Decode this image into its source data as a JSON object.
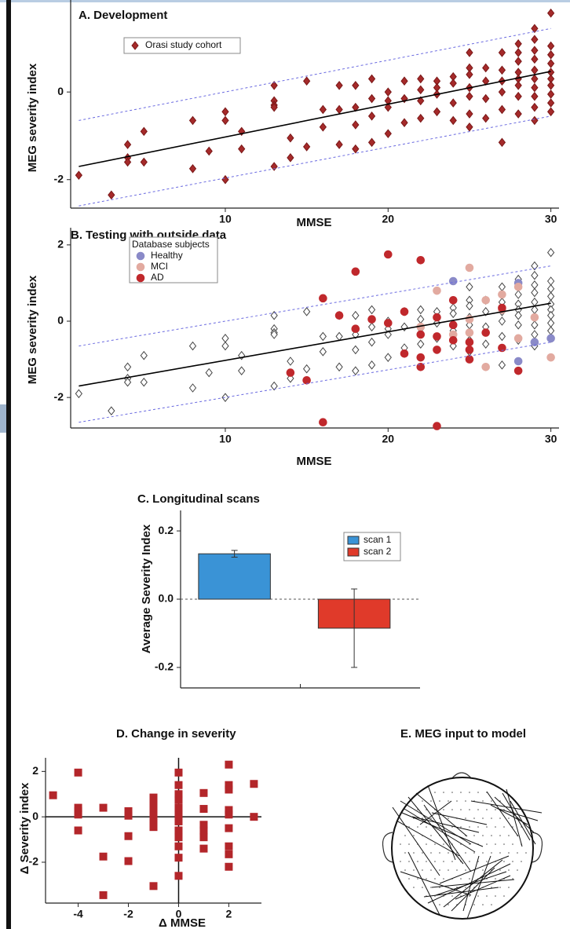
{
  "chart_data": [
    {
      "type": "scatter",
      "title": "A. Development",
      "x_label": "MMSE",
      "y_label": "MEG severity index",
      "xlim": [
        0.5,
        30.5
      ],
      "ylim": [
        -2.65,
        2.1
      ],
      "xticks": [
        10,
        20,
        30
      ],
      "yticks": [
        -2,
        0
      ],
      "legend": "upper left",
      "lines": [
        {
          "x": [
            1,
            30
          ],
          "values": [
            -1.7,
            0.47
          ],
          "color": "#000000",
          "dashed": false
        },
        {
          "x": [
            1,
            30
          ],
          "values": [
            -0.65,
            1.45
          ],
          "color": "#6a6ae0",
          "dashed": true
        },
        {
          "x": [
            1,
            30
          ],
          "values": [
            -2.6,
            -0.55
          ],
          "color": "#6a6ae0",
          "dashed": true
        }
      ],
      "series": [
        {
          "name": "Orasi study cohort",
          "marker": "diamond",
          "color": "#a52a2a",
          "edgecolor": "#7a1818",
          "x": [
            1,
            3,
            4,
            4,
            4,
            5,
            5,
            8,
            8,
            9,
            10,
            10,
            10,
            11,
            11,
            13,
            13,
            13,
            13,
            13,
            14,
            14,
            15,
            15,
            16,
            16,
            17,
            17,
            17,
            18,
            18,
            18,
            18,
            19,
            19,
            19,
            19,
            20,
            20,
            20,
            20,
            21,
            21,
            21,
            22,
            22,
            22,
            22,
            23,
            23,
            23,
            23,
            24,
            24,
            24,
            24,
            25,
            25,
            25,
            25,
            25,
            25,
            25,
            26,
            26,
            26,
            26,
            27,
            27,
            27,
            27,
            27,
            27,
            28,
            28,
            28,
            28,
            28,
            28,
            28,
            28,
            29,
            29,
            29,
            29,
            29,
            29,
            29,
            29,
            29,
            29,
            30,
            30,
            30,
            30,
            30,
            30,
            30,
            30,
            30,
            30
          ],
          "values": [
            -1.9,
            -2.35,
            -1.2,
            -1.5,
            -1.6,
            -0.9,
            -1.6,
            -0.65,
            -1.75,
            -1.35,
            -0.45,
            -0.65,
            -2.0,
            -0.9,
            -1.3,
            0.15,
            -0.2,
            -0.3,
            -0.35,
            -1.7,
            -1.05,
            -1.5,
            0.25,
            -1.25,
            -0.4,
            -0.8,
            0.15,
            -0.4,
            -1.2,
            0.15,
            -0.35,
            -0.75,
            -1.3,
            0.3,
            -0.15,
            -0.55,
            -1.15,
            0.0,
            -0.2,
            -0.35,
            -0.95,
            0.25,
            -0.15,
            -0.7,
            0.3,
            0.05,
            -0.2,
            -0.6,
            0.25,
            0.1,
            -0.05,
            -0.45,
            0.35,
            0.2,
            -0.25,
            -0.65,
            0.9,
            0.55,
            0.4,
            0.1,
            -0.1,
            -0.5,
            -0.8,
            0.55,
            0.25,
            -0.15,
            -0.6,
            0.9,
            0.5,
            0.25,
            0.0,
            -0.4,
            -1.15,
            1.1,
            0.9,
            0.7,
            0.45,
            0.3,
            0.15,
            -0.1,
            -0.5,
            1.45,
            1.2,
            0.95,
            0.75,
            0.5,
            0.3,
            0.1,
            -0.1,
            -0.35,
            -0.65,
            1.8,
            1.05,
            0.85,
            0.65,
            0.45,
            0.3,
            0.15,
            -0.05,
            -0.25,
            -0.45
          ]
        }
      ]
    },
    {
      "type": "scatter",
      "title": "B. Testing with outside data",
      "x_label": "MMSE",
      "y_label": "MEG severity index",
      "xlim": [
        0.5,
        30.5
      ],
      "ylim": [
        -2.8,
        2.45
      ],
      "xticks": [
        10,
        20,
        30
      ],
      "yticks": [
        -2,
        0,
        2
      ],
      "legend": "upper left",
      "legend_title": "Database subjects",
      "lines": [
        {
          "x": [
            1,
            30
          ],
          "values": [
            -1.7,
            0.47
          ],
          "color": "#000000",
          "dashed": false
        },
        {
          "x": [
            1,
            30
          ],
          "values": [
            -0.65,
            1.45
          ],
          "color": "#6a6ae0",
          "dashed": true
        },
        {
          "x": [
            1,
            30
          ],
          "values": [
            -2.65,
            -0.55
          ],
          "color": "#6a6ae0",
          "dashed": true
        }
      ],
      "series": [
        {
          "marker": "diamond",
          "color": "#ffffff",
          "edgecolor": "#444444",
          "x": [
            1,
            3,
            4,
            4,
            4,
            5,
            5,
            8,
            8,
            9,
            10,
            10,
            10,
            11,
            11,
            13,
            13,
            13,
            13,
            13,
            14,
            14,
            15,
            15,
            16,
            16,
            17,
            17,
            17,
            18,
            18,
            18,
            18,
            19,
            19,
            19,
            19,
            20,
            20,
            20,
            20,
            21,
            21,
            21,
            22,
            22,
            22,
            22,
            23,
            23,
            23,
            23,
            24,
            24,
            24,
            24,
            25,
            25,
            25,
            25,
            25,
            25,
            25,
            26,
            26,
            26,
            26,
            27,
            27,
            27,
            27,
            27,
            27,
            28,
            28,
            28,
            28,
            28,
            28,
            28,
            28,
            29,
            29,
            29,
            29,
            29,
            29,
            29,
            29,
            29,
            29,
            30,
            30,
            30,
            30,
            30,
            30,
            30,
            30,
            30,
            30
          ],
          "values": [
            -1.9,
            -2.35,
            -1.2,
            -1.5,
            -1.6,
            -0.9,
            -1.6,
            -0.65,
            -1.75,
            -1.35,
            -0.45,
            -0.65,
            -2.0,
            -0.9,
            -1.3,
            0.15,
            -0.2,
            -0.3,
            -0.35,
            -1.7,
            -1.05,
            -1.5,
            0.25,
            -1.25,
            -0.4,
            -0.8,
            0.15,
            -0.4,
            -1.2,
            0.15,
            -0.35,
            -0.75,
            -1.3,
            0.3,
            -0.15,
            -0.55,
            -1.15,
            0.0,
            -0.2,
            -0.35,
            -0.95,
            0.25,
            -0.15,
            -0.7,
            0.3,
            0.05,
            -0.2,
            -0.6,
            0.25,
            0.1,
            -0.05,
            -0.45,
            0.35,
            0.2,
            -0.25,
            -0.65,
            0.9,
            0.55,
            0.4,
            0.1,
            -0.1,
            -0.5,
            -0.8,
            0.55,
            0.25,
            -0.15,
            -0.6,
            0.9,
            0.5,
            0.25,
            0.0,
            -0.4,
            -1.15,
            1.1,
            0.9,
            0.7,
            0.45,
            0.3,
            0.15,
            -0.1,
            -0.5,
            1.45,
            1.2,
            0.95,
            0.75,
            0.5,
            0.3,
            0.1,
            -0.1,
            -0.35,
            -0.65,
            1.8,
            1.05,
            0.85,
            0.65,
            0.45,
            0.3,
            0.15,
            -0.05,
            -0.25,
            -0.45
          ]
        },
        {
          "name": "Healthy",
          "marker": "circle",
          "color": "#8a8ac8",
          "edgecolor": "#8a8ac8",
          "x": [
            24,
            28,
            28,
            29,
            30
          ],
          "values": [
            1.05,
            1.0,
            -1.05,
            -0.55,
            -0.45
          ]
        },
        {
          "name": "MCI",
          "marker": "circle",
          "color": "#e2aaa0",
          "edgecolor": "#e2aaa0",
          "x": [
            22,
            23,
            24,
            25,
            25,
            25,
            26,
            26,
            27,
            27,
            28,
            28,
            29,
            30
          ],
          "values": [
            -0.15,
            0.8,
            -0.35,
            1.4,
            0.05,
            -0.3,
            0.55,
            -1.2,
            0.3,
            0.7,
            0.9,
            -0.45,
            0.1,
            -0.95
          ]
        },
        {
          "name": "AD",
          "marker": "circle",
          "color": "#c0282c",
          "edgecolor": "#c0282c",
          "x": [
            14,
            15,
            16,
            16,
            17,
            18,
            18,
            19,
            20,
            20,
            21,
            21,
            22,
            22,
            22,
            22,
            23,
            23,
            23,
            23,
            24,
            24,
            24,
            25,
            25,
            25,
            26,
            27,
            27,
            28
          ],
          "values": [
            -1.35,
            -1.55,
            0.6,
            -2.65,
            0.15,
            1.3,
            -0.2,
            0.05,
            1.75,
            -0.05,
            0.25,
            -0.85,
            1.6,
            -0.35,
            -0.95,
            -1.2,
            0.1,
            -0.4,
            -0.75,
            -2.75,
            0.55,
            -0.1,
            -0.5,
            -0.55,
            -0.75,
            -1.0,
            -0.3,
            0.35,
            -0.7,
            -1.3
          ]
        }
      ]
    },
    {
      "type": "bar",
      "title": "C. Longitudinal scans",
      "y_label": "Average Severity Index",
      "categories": [
        "scan 1",
        "scan 2"
      ],
      "values": [
        0.133,
        -0.085
      ],
      "errors": [
        0.01,
        0.115
      ],
      "colors": [
        "#3a93d6",
        "#e03a2a"
      ],
      "ylim": [
        -0.26,
        0.26
      ],
      "yticks": [
        {
          "value": -0.2,
          "label": "-0.2"
        },
        {
          "value": 0,
          "label": "0.0"
        },
        {
          "value": 0.2,
          "label": "0.2"
        }
      ],
      "legend": "upper right",
      "zero_line": true
    },
    {
      "type": "scatter",
      "title": "D. Change in severity",
      "x_label": "Δ MMSE",
      "y_label": "Δ Severity index",
      "xlim": [
        -5.3,
        3.3
      ],
      "ylim": [
        -3.8,
        2.6
      ],
      "xticks": [
        -4,
        -2,
        0,
        2
      ],
      "yticks": [
        -2,
        0,
        2
      ],
      "zero_lines": true,
      "series": [
        {
          "marker": "square",
          "color": "#b3262a",
          "edgecolor": "#b3262a",
          "x": [
            -5,
            -4,
            -4,
            -4,
            -4,
            -4,
            -3,
            -3,
            -3,
            -2,
            -2,
            -2,
            -2,
            -1,
            -1,
            -1,
            -1,
            -1,
            -1,
            -1,
            0,
            0,
            0,
            0,
            0,
            0,
            0,
            0,
            0,
            0,
            0,
            0,
            1,
            1,
            1,
            1,
            1,
            1,
            2,
            2,
            2,
            2,
            2,
            2,
            2,
            2,
            2,
            3,
            3
          ],
          "values": [
            0.95,
            1.95,
            0.4,
            0.25,
            0.1,
            -0.6,
            0.4,
            -1.75,
            -3.45,
            0.25,
            0.05,
            -0.85,
            -1.95,
            0.85,
            0.7,
            0.4,
            0.1,
            -0.15,
            -0.45,
            -3.05,
            1.95,
            1.4,
            1.0,
            0.75,
            0.4,
            0.1,
            -0.2,
            -0.6,
            -0.9,
            -1.3,
            -1.8,
            -2.6,
            1.05,
            0.35,
            -0.35,
            -0.6,
            -0.9,
            -1.4,
            2.3,
            1.4,
            1.2,
            0.3,
            0.1,
            -0.5,
            -1.3,
            -1.65,
            -2.2,
            1.45,
            0
          ]
        }
      ]
    }
  ],
  "diagram": {
    "title": "E. MEG input to model"
  }
}
